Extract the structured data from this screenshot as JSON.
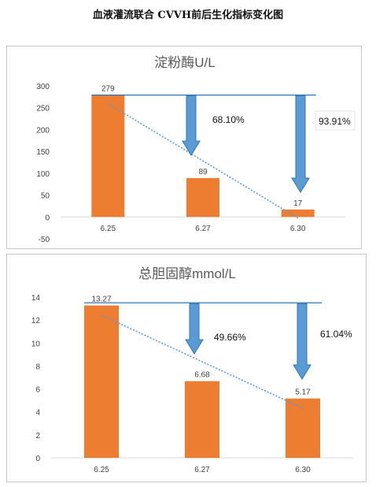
{
  "page": {
    "title": "血液灌流联合 CVVH前后生化指标变化图"
  },
  "colors": {
    "bar": "#ED7D31",
    "refline": "#2E75B6",
    "arrow": "#5B9BD5",
    "arrow_stroke": "#2E75B6",
    "trend": "#5B9BD5",
    "grid": "#D9D9D9",
    "axis_text": "#404040"
  },
  "chart_data": [
    {
      "type": "bar",
      "title": "淀粉酶U/L",
      "categories": [
        "6.25",
        "6.27",
        "6.30"
      ],
      "values": [
        279,
        89,
        17
      ],
      "value_labels": [
        "279",
        "89",
        "17"
      ],
      "ylim": [
        -50,
        300
      ],
      "yticks": [
        300,
        250,
        200,
        150,
        100,
        50,
        0,
        -50
      ],
      "ytick_labels": [
        "300",
        "250",
        "200",
        "150",
        "100",
        "50",
        "0",
        "-50"
      ],
      "reference_line": 279,
      "trendline": "linear, dotted",
      "annotations": [
        "68.10%",
        "93.91%"
      ],
      "grid": false
    },
    {
      "type": "bar",
      "title": "总胆固醇mmol/L",
      "categories": [
        "6.25",
        "6.27",
        "6.30"
      ],
      "values": [
        13.27,
        6.68,
        5.17
      ],
      "value_labels": [
        "13.27",
        "6.68",
        "5.17"
      ],
      "ylim": [
        0,
        14
      ],
      "yticks": [
        14,
        12,
        10,
        8,
        6,
        4,
        2,
        0
      ],
      "ytick_labels": [
        "14",
        "12",
        "10",
        "8",
        "6",
        "4",
        "2",
        "0"
      ],
      "reference_line": 13.5,
      "trendline": "linear, dotted",
      "annotations": [
        "49.66%",
        "61.04%"
      ],
      "grid": false
    }
  ]
}
